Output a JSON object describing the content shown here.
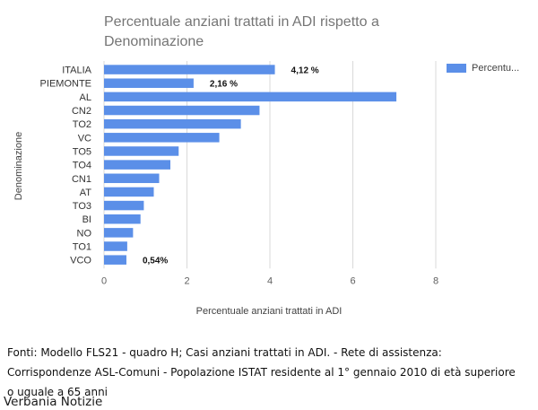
{
  "chart_data": {
    "type": "bar",
    "orientation": "horizontal",
    "title": "Percentuale anziani trattati in ADI rispetto a Denominazione",
    "xlabel": "Percentuale anziani trattati in ADI",
    "ylabel": "Denominazione",
    "xlim": [
      0,
      8
    ],
    "xticks": [
      0,
      2,
      4,
      6,
      8
    ],
    "grid": true,
    "categories": [
      "ITALIA",
      "PIEMONTE",
      "AL",
      "CN2",
      "TO2",
      "VC",
      "TO5",
      "TO4",
      "CN1",
      "AT",
      "TO3",
      "BI",
      "NO",
      "TO1",
      "VCO"
    ],
    "series": [
      {
        "name": "Percentu...",
        "values": [
          4.12,
          2.16,
          7.05,
          3.75,
          3.3,
          2.78,
          1.8,
          1.6,
          1.33,
          1.2,
          0.96,
          0.88,
          0.7,
          0.56,
          0.54
        ]
      }
    ],
    "annotations": [
      {
        "category": "ITALIA",
        "text": "4,12  %"
      },
      {
        "category": "PIEMONTE",
        "text": "2,16 %"
      },
      {
        "category": "VCO",
        "text": "0,54%"
      }
    ],
    "legend_position": "top-right"
  },
  "colors": {
    "bar": "#5b8fe8",
    "grid": "#d9d9d9",
    "tick_text": "#616161",
    "category_text": "#333333"
  },
  "title_text": "Percentuale anziani trattati in ADI rispetto a Denominazione",
  "legend_label": "Percentu...",
  "source": {
    "line1": "Fonti: Modello FLS21 - quadro H; Casi anziani trattati in ADI. - Rete di assistenza:",
    "line2": "Corrispondenze ASL-Comuni - Popolazione ISTAT residente al 1° gennaio 2010 di età superiore",
    "line3": "o uguale a 65 anni"
  },
  "watermark": "Verbania Notizie"
}
